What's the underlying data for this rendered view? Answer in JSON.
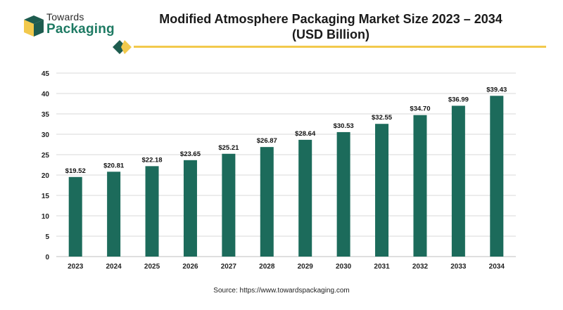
{
  "brand": {
    "name_top": "Towards",
    "name_bottom": "Packaging",
    "colors": {
      "cube_dark": "#1e5c4f",
      "cube_light": "#f2c94c",
      "text_green": "#1e7a63"
    }
  },
  "title_line1": "Modified Atmosphere Packaging Market Size 2023 – 2034",
  "title_line2": "(USD Billion)",
  "source": "Source: https://www.towardspackaging.com",
  "colors": {
    "bar": "#1c6b5b",
    "accent_rule": "#f2c94c",
    "grid": "#d9d9d9",
    "axis": "#bfbfbf"
  },
  "chart_data": {
    "type": "bar",
    "title": "Modified Atmosphere Packaging Market Size 2023 – 2034 (USD Billion)",
    "xlabel": "",
    "ylabel": "",
    "categories": [
      "2023",
      "2024",
      "2025",
      "2026",
      "2027",
      "2028",
      "2029",
      "2030",
      "2031",
      "2032",
      "2033",
      "2034"
    ],
    "values": [
      19.52,
      20.81,
      22.18,
      23.65,
      25.21,
      26.87,
      28.64,
      30.53,
      32.55,
      34.7,
      36.99,
      39.43
    ],
    "value_labels": [
      "$19.52",
      "$20.81",
      "$22.18",
      "$23.65",
      "$25.21",
      "$26.87",
      "$28.64",
      "$30.53",
      "$32.55",
      "$34.70",
      "$36.99",
      "$39.43"
    ],
    "ylim": [
      0,
      45
    ],
    "yticks": [
      0,
      5,
      10,
      15,
      20,
      25,
      30,
      35,
      40,
      45
    ],
    "grid": true,
    "legend": "none"
  }
}
